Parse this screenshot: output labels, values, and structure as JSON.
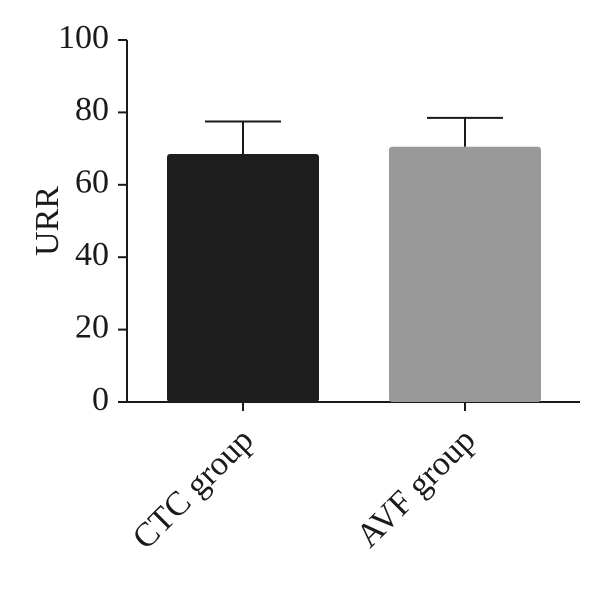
{
  "chart_data": {
    "type": "bar",
    "ylabel": "URR",
    "categories": [
      "CTC group",
      "AVF group"
    ],
    "values": [
      68.5,
      70.5
    ],
    "errors": [
      9,
      8
    ],
    "colors": [
      "#1e1e1e",
      "#999999"
    ],
    "ylim": [
      0,
      100
    ],
    "yticks": [
      0,
      20,
      40,
      60,
      80,
      100
    ]
  }
}
